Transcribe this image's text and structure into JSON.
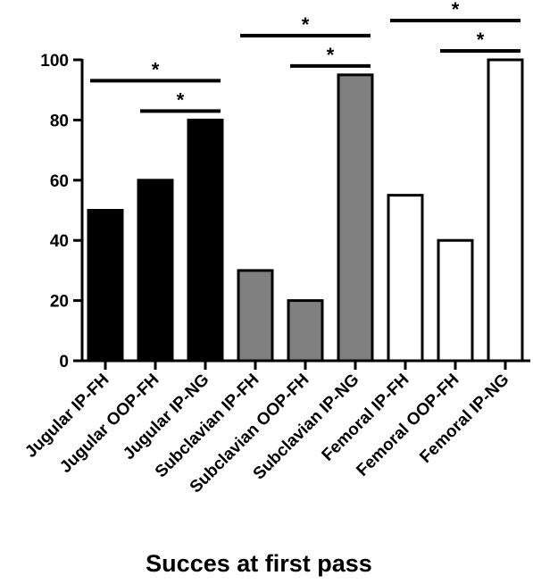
{
  "chart_data": {
    "type": "bar",
    "title": "",
    "xlabel": "Succes at first pass",
    "ylabel": "",
    "ylim": [
      0,
      100
    ],
    "yticks": [
      0,
      20,
      40,
      60,
      80,
      100
    ],
    "grid": false,
    "categories": [
      "Jugular IP-FH",
      "Jugular OOP-FH",
      "Jugular IP-NG",
      "Subclavian IP-FH",
      "Subclavian OOP-FH",
      "Subclavian IP-NG",
      "Femoral IP-FH",
      "Femoral OOP-FH",
      "Femoral IP-NG"
    ],
    "values": [
      50,
      60,
      80,
      30,
      20,
      95,
      55,
      40,
      100
    ],
    "colors": [
      "#000000",
      "#000000",
      "#000000",
      "#808080",
      "#808080",
      "#808080",
      "#ffffff",
      "#ffffff",
      "#ffffff"
    ],
    "significance": [
      {
        "from": 0,
        "to": 2,
        "label": "*",
        "level": 2
      },
      {
        "from": 1,
        "to": 2,
        "label": "*",
        "level": 1
      },
      {
        "from": 3,
        "to": 5,
        "label": "*",
        "level": 2
      },
      {
        "from": 4,
        "to": 5,
        "label": "*",
        "level": 1
      },
      {
        "from": 6,
        "to": 8,
        "label": "*",
        "level": 2
      },
      {
        "from": 7,
        "to": 8,
        "label": "*",
        "level": 1
      }
    ]
  }
}
